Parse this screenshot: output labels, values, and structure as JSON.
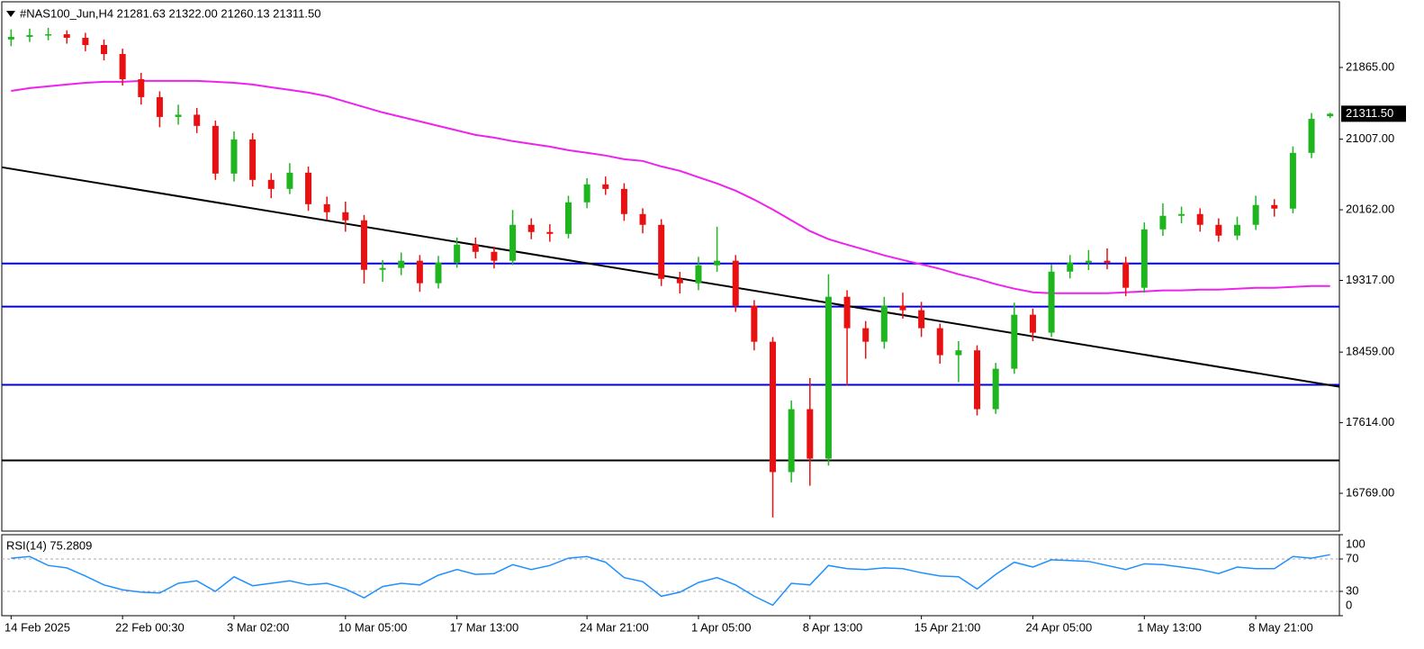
{
  "chart_data": {
    "type": "candlestick",
    "title": "#NAS100_Jun,H4  21281.63 21322.00 21260.13 21311.50",
    "categories": [
      "14 Feb 2025",
      null,
      null,
      null,
      null,
      null,
      "22 Feb 00:30",
      null,
      null,
      null,
      null,
      null,
      "3 Mar 02:00",
      null,
      null,
      null,
      null,
      null,
      "10 Mar 05:00",
      null,
      null,
      null,
      null,
      null,
      "17 Mar 13:00",
      null,
      null,
      null,
      null,
      null,
      null,
      "24 Mar 21:00",
      null,
      null,
      null,
      null,
      null,
      "1 Apr 05:00",
      null,
      null,
      null,
      null,
      null,
      "8 Apr 13:00",
      null,
      null,
      null,
      null,
      null,
      "15 Apr 21:00",
      null,
      null,
      null,
      null,
      null,
      "24 Apr 05:00",
      null,
      null,
      null,
      null,
      null,
      "1 May 13:00",
      null,
      null,
      null,
      null,
      null,
      "8 May 21:00",
      null,
      null,
      null,
      null
    ],
    "open": [
      22200,
      22231,
      22252,
      22263,
      22220,
      22134,
      22026,
      21725,
      21510,
      21273,
      21300,
      21166,
      20595,
      21004,
      20520,
      20412,
      20606,
      20229,
      20133,
      20036,
      19444,
      19466,
      19552,
      19283,
      19530,
      19745,
      19659,
      19552,
      19982,
      19896,
      19874,
      20251,
      20466,
      20412,
      20111,
      19982,
      19336,
      19283,
      19498,
      19552,
      19014,
      18583,
      17023,
      17776,
      17184,
      19121,
      18745,
      18583,
      19014,
      18960,
      18745,
      18422,
      18480,
      17776,
      18260,
      18906,
      18691,
      19422,
      19530,
      19552,
      19530,
      19229,
      19928,
      20090,
      20111,
      19982,
      19853,
      19982,
      20219,
      20176,
      20843,
      21281.63
    ],
    "high": [
      22320,
      22330,
      22340,
      22310,
      22280,
      22200,
      22090,
      21800,
      21580,
      21420,
      21380,
      21230,
      21100,
      21080,
      20600,
      20720,
      20680,
      20320,
      20260,
      20100,
      19560,
      19650,
      19620,
      19610,
      19830,
      19830,
      19720,
      20160,
      20060,
      19990,
      20330,
      20540,
      20560,
      20480,
      20180,
      20050,
      19420,
      19600,
      19960,
      19620,
      19080,
      18640,
      17880,
      18150,
      19390,
      19200,
      18830,
      19120,
      19170,
      19060,
      18800,
      18590,
      18540,
      18330,
      19050,
      18980,
      19510,
      19620,
      19680,
      19700,
      19600,
      20010,
      20240,
      20200,
      20180,
      20060,
      20080,
      20330,
      20290,
      20920,
      21320,
      21322
    ],
    "low": [
      22120,
      22170,
      22190,
      22150,
      22060,
      21950,
      21650,
      21420,
      21150,
      21180,
      21080,
      20520,
      20500,
      20440,
      20300,
      20350,
      20150,
      20040,
      19900,
      19280,
      19300,
      19380,
      19180,
      19220,
      19470,
      19580,
      19460,
      19500,
      19810,
      19780,
      19820,
      20180,
      20340,
      20030,
      19880,
      19250,
      19160,
      19200,
      19420,
      18940,
      18480,
      16480,
      16900,
      16860,
      17100,
      18060,
      18380,
      18500,
      18860,
      18640,
      18320,
      18100,
      17700,
      17720,
      18200,
      18590,
      18640,
      19340,
      19440,
      19450,
      19130,
      19170,
      19850,
      20000,
      19900,
      19780,
      19800,
      19920,
      20080,
      20120,
      20780,
      21260.13
    ],
    "close": [
      22231,
      22252,
      22263,
      22220,
      22134,
      22026,
      21725,
      21510,
      21273,
      21300,
      21166,
      20595,
      21004,
      20520,
      20412,
      20606,
      20229,
      20133,
      20036,
      19444,
      19466,
      19552,
      19283,
      19530,
      19745,
      19659,
      19552,
      19982,
      19896,
      19874,
      20251,
      20466,
      20412,
      20111,
      19982,
      19336,
      19283,
      19498,
      19552,
      19014,
      18583,
      17023,
      17776,
      17184,
      19121,
      18745,
      18583,
      19014,
      18960,
      18745,
      18422,
      18480,
      17776,
      18260,
      18906,
      18691,
      19422,
      19530,
      19552,
      19530,
      19229,
      19928,
      20090,
      20111,
      19982,
      19853,
      19982,
      20219,
      20176,
      20843,
      21250,
      21311.5
    ],
    "up_color": "#1fb51f",
    "down_color": "#e81010",
    "last_price_label": "21311.50",
    "ylim": [
      16317,
      22651
    ],
    "yticks": [
      {
        "value": 21865,
        "label": "21865.00"
      },
      {
        "value": 21007,
        "label": "21007.00"
      },
      {
        "value": 20162,
        "label": "20162.00"
      },
      {
        "value": 19317,
        "label": "19317.00"
      },
      {
        "value": 18459,
        "label": "18459.00"
      },
      {
        "value": 17614,
        "label": "17614.00"
      },
      {
        "value": 16769,
        "label": "16769.00"
      }
    ],
    "ma": {
      "color": "#ee22ee",
      "values": [
        21585,
        21618,
        21639,
        21661,
        21682,
        21693,
        21693,
        21704,
        21704,
        21704,
        21704,
        21693,
        21682,
        21661,
        21628,
        21596,
        21564,
        21521,
        21456,
        21392,
        21327,
        21273,
        21219,
        21166,
        21112,
        21058,
        21026,
        20983,
        20950,
        20918,
        20875,
        20843,
        20811,
        20767,
        20746,
        20681,
        20628,
        20552,
        20477,
        20391,
        20283,
        20165,
        20036,
        19907,
        19810,
        19745,
        19681,
        19616,
        19562,
        19509,
        19455,
        19390,
        19336,
        19272,
        19218,
        19175,
        19164,
        19164,
        19164,
        19164,
        19175,
        19186,
        19197,
        19197,
        19207,
        19207,
        19218,
        19229,
        19229,
        19240,
        19250,
        19250
      ]
    },
    "hlines": [
      {
        "value": 19519,
        "color": "#0000dd"
      },
      {
        "value": 19003,
        "color": "#0000dd"
      },
      {
        "value": 18067,
        "color": "#0000dd"
      },
      {
        "value": 17163,
        "color": "#000000"
      }
    ],
    "trendline": {
      "start": 20671,
      "end": 18045,
      "color": "#000000"
    },
    "rsi": {
      "title": "RSI(14) 75.2809",
      "color": "#1e90ff",
      "values": [
        71,
        73,
        62,
        59,
        49,
        38,
        32,
        29,
        28,
        40,
        43,
        30,
        48,
        37,
        40,
        43,
        38,
        40,
        33,
        22,
        36,
        40,
        38,
        50,
        57,
        51,
        52,
        63,
        57,
        62,
        71,
        73,
        66,
        47,
        42,
        24,
        29,
        41,
        47,
        38,
        24,
        13,
        40,
        38,
        62,
        58,
        57,
        59,
        58,
        53,
        49,
        48,
        33,
        51,
        66,
        60,
        69,
        68,
        67,
        62,
        57,
        64,
        63,
        60,
        57,
        52,
        60,
        58,
        58,
        73,
        71,
        75.2809
      ],
      "ylim": [
        0,
        100
      ],
      "yticks": [
        100,
        70,
        30,
        0
      ],
      "levels": [
        70,
        30
      ]
    }
  }
}
